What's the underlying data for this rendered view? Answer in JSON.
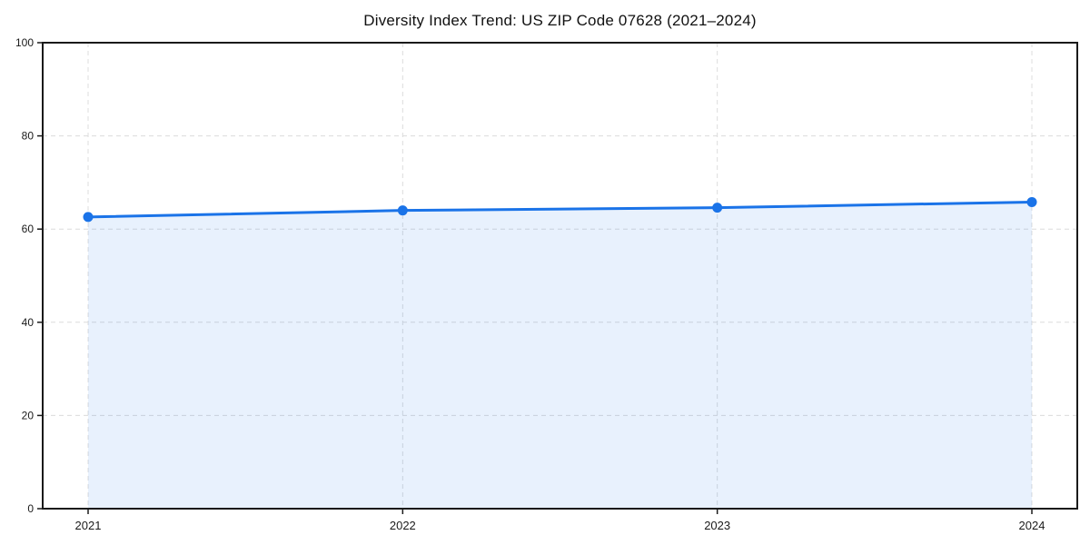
{
  "figure": {
    "background": "#ffffff"
  },
  "chart_data": {
    "type": "line",
    "title": "Diversity Index Trend: US ZIP Code 07628 (2021–2024)",
    "x": [
      "2021",
      "2022",
      "2023",
      "2024"
    ],
    "series": [
      {
        "name": "Diversity Index",
        "values": [
          62.6,
          64.0,
          64.6,
          65.8
        ]
      }
    ],
    "xlabel": "",
    "ylabel": "",
    "ylim": [
      0,
      100
    ],
    "yticks": [
      0,
      20,
      40,
      60,
      80,
      100
    ],
    "grid": true,
    "grid_style": "dashed",
    "legend": "none",
    "marker": "circle",
    "area_fill": true,
    "colors": {
      "line": "#1a73e8",
      "marker": "#1a73e8",
      "area": "rgba(26,115,232,0.10)",
      "grid": "#dcdcdc",
      "axis": "#1a1a1a",
      "tick_label": "#1a1a1a",
      "title": "#111111",
      "background": "#ffffff"
    }
  }
}
